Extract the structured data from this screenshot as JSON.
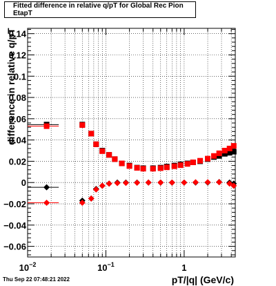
{
  "chart_data": {
    "type": "scatter",
    "title": "Fitted difference in relative q/pT for Global Rec Pion EtapT",
    "xlabel": "pT/|q| (GeV/c)",
    "ylabel": "difference in relative q/pT",
    "x_scale": "log",
    "xlim": [
      0.01,
      4.5
    ],
    "ylim": [
      -0.07,
      0.145
    ],
    "grid": true,
    "x_ticks": [
      {
        "value": 0.01,
        "label": "10",
        "sup": "−2"
      },
      {
        "value": 0.1,
        "label": "10",
        "sup": "−1"
      },
      {
        "value": 1,
        "label": "1",
        "sup": ""
      }
    ],
    "y_ticks": [
      {
        "value": 0.14,
        "label": "0.14"
      },
      {
        "value": 0.12,
        "label": "0.12"
      },
      {
        "value": 0.1,
        "label": "0.1"
      },
      {
        "value": 0.08,
        "label": "0.08"
      },
      {
        "value": 0.06,
        "label": "0.06"
      },
      {
        "value": 0.04,
        "label": "0.04"
      },
      {
        "value": 0.02,
        "label": "0.02"
      },
      {
        "value": 0,
        "label": "0"
      },
      {
        "value": -0.02,
        "label": "−0.02"
      },
      {
        "value": -0.04,
        "label": "−0.04"
      },
      {
        "value": -0.06,
        "label": "−0.06"
      }
    ],
    "series": [
      {
        "marker": "square",
        "color": "#000000",
        "points": [
          {
            "x": 0.0175,
            "y": 0.0545,
            "xlo": 0.01,
            "xhi": 0.025
          },
          {
            "x": 0.05,
            "y": 0.0545
          },
          {
            "x": 0.065,
            "y": 0.046
          },
          {
            "x": 0.075,
            "y": 0.036
          },
          {
            "x": 0.09,
            "y": 0.03
          },
          {
            "x": 0.11,
            "y": 0.026
          },
          {
            "x": 0.13,
            "y": 0.022
          },
          {
            "x": 0.16,
            "y": 0.018
          },
          {
            "x": 0.2,
            "y": 0.016
          },
          {
            "x": 0.25,
            "y": 0.014
          },
          {
            "x": 0.3,
            "y": 0.0135
          },
          {
            "x": 0.4,
            "y": 0.0135
          },
          {
            "x": 0.5,
            "y": 0.014
          },
          {
            "x": 0.6,
            "y": 0.015
          },
          {
            "x": 0.75,
            "y": 0.016
          },
          {
            "x": 0.9,
            "y": 0.017
          },
          {
            "x": 1.1,
            "y": 0.018
          },
          {
            "x": 1.3,
            "y": 0.019
          },
          {
            "x": 1.6,
            "y": 0.02
          },
          {
            "x": 2.0,
            "y": 0.022
          },
          {
            "x": 2.4,
            "y": 0.024
          },
          {
            "x": 2.8,
            "y": 0.025
          },
          {
            "x": 3.3,
            "y": 0.027
          },
          {
            "x": 3.8,
            "y": 0.028
          },
          {
            "x": 4.3,
            "y": 0.029
          }
        ]
      },
      {
        "marker": "square",
        "color": "#ff0000",
        "points": [
          {
            "x": 0.0175,
            "y": 0.053,
            "xlo": 0.01,
            "xhi": 0.025
          },
          {
            "x": 0.05,
            "y": 0.054
          },
          {
            "x": 0.065,
            "y": 0.046
          },
          {
            "x": 0.075,
            "y": 0.036
          },
          {
            "x": 0.09,
            "y": 0.0295
          },
          {
            "x": 0.11,
            "y": 0.026
          },
          {
            "x": 0.13,
            "y": 0.022
          },
          {
            "x": 0.16,
            "y": 0.018
          },
          {
            "x": 0.2,
            "y": 0.0155
          },
          {
            "x": 0.25,
            "y": 0.0138
          },
          {
            "x": 0.3,
            "y": 0.013
          },
          {
            "x": 0.4,
            "y": 0.013
          },
          {
            "x": 0.5,
            "y": 0.0135
          },
          {
            "x": 0.6,
            "y": 0.0143
          },
          {
            "x": 0.75,
            "y": 0.0153
          },
          {
            "x": 0.9,
            "y": 0.0163
          },
          {
            "x": 1.1,
            "y": 0.0175
          },
          {
            "x": 1.3,
            "y": 0.019
          },
          {
            "x": 1.6,
            "y": 0.0205
          },
          {
            "x": 2.0,
            "y": 0.0225
          },
          {
            "x": 2.4,
            "y": 0.025
          },
          {
            "x": 2.8,
            "y": 0.0275
          },
          {
            "x": 3.3,
            "y": 0.03
          },
          {
            "x": 3.8,
            "y": 0.032
          },
          {
            "x": 4.3,
            "y": 0.0345
          }
        ]
      },
      {
        "marker": "diamond",
        "color": "#000000",
        "points": [
          {
            "x": 0.0175,
            "y": -0.0045,
            "xlo": 0.01,
            "xhi": 0.025
          },
          {
            "x": 0.05,
            "y": -0.017
          },
          {
            "x": 0.065,
            "y": -0.015
          },
          {
            "x": 0.075,
            "y": -0.006
          },
          {
            "x": 0.09,
            "y": -0.003
          },
          {
            "x": 0.11,
            "y": -0.001
          },
          {
            "x": 0.14,
            "y": 0.0
          },
          {
            "x": 0.18,
            "y": 0.0
          },
          {
            "x": 0.25,
            "y": 0.0
          },
          {
            "x": 0.35,
            "y": 0.0
          },
          {
            "x": 0.5,
            "y": 0.0
          },
          {
            "x": 0.7,
            "y": 0.0
          },
          {
            "x": 1.0,
            "y": 0.0
          },
          {
            "x": 1.4,
            "y": 0.0
          },
          {
            "x": 2.0,
            "y": 0.0
          },
          {
            "x": 2.8,
            "y": 0.0005
          },
          {
            "x": 3.8,
            "y": 0.0
          },
          {
            "x": 4.3,
            "y": -0.001
          }
        ]
      },
      {
        "marker": "diamond",
        "color": "#ff0000",
        "points": [
          {
            "x": 0.0175,
            "y": -0.019,
            "xlo": 0.01,
            "xhi": 0.025
          },
          {
            "x": 0.05,
            "y": -0.019
          },
          {
            "x": 0.065,
            "y": -0.015
          },
          {
            "x": 0.075,
            "y": -0.0065
          },
          {
            "x": 0.09,
            "y": -0.003
          },
          {
            "x": 0.11,
            "y": -0.001
          },
          {
            "x": 0.14,
            "y": -0.0005
          },
          {
            "x": 0.18,
            "y": -0.0003
          },
          {
            "x": 0.25,
            "y": -0.0002
          },
          {
            "x": 0.35,
            "y": 0.0
          },
          {
            "x": 0.5,
            "y": 0.0
          },
          {
            "x": 0.7,
            "y": 0.0
          },
          {
            "x": 1.0,
            "y": 0.0
          },
          {
            "x": 1.4,
            "y": 0.0002
          },
          {
            "x": 2.0,
            "y": 0.0003
          },
          {
            "x": 2.8,
            "y": 0.0003
          },
          {
            "x": 3.8,
            "y": -0.001
          },
          {
            "x": 4.3,
            "y": -0.003
          }
        ]
      }
    ]
  },
  "footer": {
    "timestamp": "Thu Sep 22 07:48:21 2022"
  }
}
